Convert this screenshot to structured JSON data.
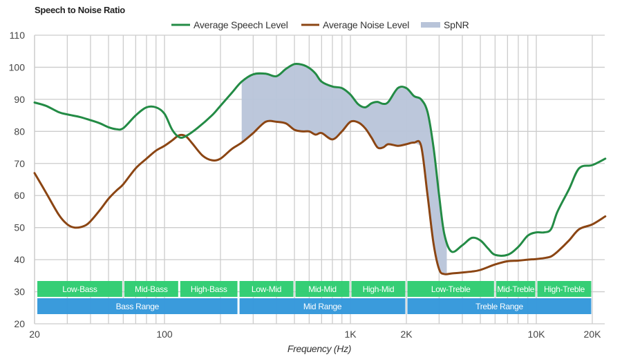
{
  "chart_data": {
    "type": "line",
    "title": "Speech to Noise Ratio",
    "xlabel": "Frequency (Hz)",
    "ylabel": "",
    "xscale": "log",
    "xlim": [
      20,
      23500
    ],
    "ylim": [
      20,
      110
    ],
    "grid": true,
    "legend_position": "top-center",
    "y_ticks": [
      20,
      30,
      40,
      50,
      60,
      70,
      80,
      90,
      100,
      110
    ],
    "y_tick_labels": [
      "20",
      "30",
      "40",
      "50",
      "60",
      "70",
      "80",
      "90",
      "100",
      "110"
    ],
    "x_ticks": [
      20,
      100,
      1000,
      2000,
      10000,
      20000
    ],
    "x_tick_labels": [
      "20",
      "100",
      "1K",
      "2K",
      "10K",
      "20K"
    ],
    "x_minor_grid": [
      30,
      40,
      50,
      60,
      70,
      80,
      90,
      200,
      300,
      400,
      500,
      600,
      700,
      800,
      900,
      3000,
      4000,
      5000,
      6000,
      7000,
      8000,
      9000
    ],
    "series": [
      {
        "name": "Average Speech Level",
        "color": "#238b45",
        "x": [
          20,
          23,
          27,
          30,
          35,
          40,
          45,
          50,
          55,
          60,
          70,
          80,
          90,
          100,
          110,
          120,
          130,
          150,
          180,
          200,
          230,
          260,
          300,
          350,
          400,
          450,
          500,
          550,
          600,
          650,
          700,
          800,
          900,
          1000,
          1100,
          1200,
          1300,
          1400,
          1500,
          1600,
          1800,
          2000,
          2200,
          2400,
          2600,
          2800,
          3000,
          3200,
          3500,
          4000,
          4500,
          5000,
          5500,
          6000,
          7000,
          8000,
          9000,
          10000,
          11000,
          12000,
          13000,
          15000,
          17000,
          20000,
          23500
        ],
        "values": [
          89,
          88,
          86,
          85.3,
          84.5,
          83.5,
          82.5,
          81.3,
          80.7,
          81,
          85,
          87.5,
          87.5,
          85.5,
          80.5,
          78.2,
          78.5,
          81,
          85,
          88,
          92,
          95.5,
          97.8,
          98,
          97.2,
          99.5,
          101,
          100.8,
          99.8,
          98,
          95.5,
          94,
          93.5,
          91.5,
          88.5,
          87.5,
          88.8,
          89.2,
          88.6,
          89.2,
          93.5,
          93.5,
          91,
          90,
          86,
          75,
          60,
          48,
          42.5,
          44.5,
          46.8,
          46,
          43.5,
          41.5,
          41.5,
          44,
          47.5,
          48.5,
          48.5,
          49.5,
          55,
          62,
          68.5,
          69.5,
          71.5
        ]
      },
      {
        "name": "Average Noise Level",
        "color": "#8b4513",
        "x": [
          20,
          23,
          27,
          30,
          33,
          37,
          40,
          45,
          50,
          55,
          60,
          70,
          80,
          90,
          100,
          110,
          120,
          130,
          140,
          160,
          180,
          200,
          230,
          260,
          300,
          350,
          400,
          450,
          500,
          550,
          600,
          650,
          700,
          800,
          900,
          1000,
          1100,
          1200,
          1300,
          1400,
          1500,
          1600,
          1800,
          2000,
          2200,
          2400,
          2600,
          2800,
          3000,
          3200,
          3500,
          4000,
          4500,
          5000,
          6000,
          7000,
          8000,
          9000,
          10000,
          11000,
          12000,
          13000,
          15000,
          17000,
          20000,
          23500
        ],
        "values": [
          67,
          61,
          54,
          51,
          50,
          50.5,
          52,
          55.5,
          59,
          61.5,
          63.5,
          68.5,
          71.5,
          74,
          75.5,
          77.2,
          78.8,
          78.5,
          76.5,
          72.5,
          71,
          71.5,
          74.5,
          76.5,
          79.5,
          83,
          83,
          82.5,
          80.5,
          80,
          80,
          79,
          79.5,
          77.5,
          80,
          83,
          82.8,
          81,
          78,
          75,
          75,
          76,
          75.5,
          76,
          76.5,
          75.5,
          60,
          45,
          37,
          35.5,
          35.7,
          36,
          36.3,
          36.8,
          38.5,
          39.5,
          39.7,
          40,
          40.2,
          40.5,
          41,
          42.5,
          46,
          49.5,
          51,
          53.5
        ]
      }
    ],
    "fill": {
      "name": "SpNR",
      "color": "#b8c4d9",
      "between": [
        "Average Speech Level",
        "Average Noise Level"
      ],
      "x_range": [
        260,
        3300
      ]
    },
    "bands": [
      {
        "label": "Low-Bass",
        "start": 20,
        "end": 60,
        "color": "#2ecc71",
        "row": "sub"
      },
      {
        "label": "Mid-Bass",
        "start": 60,
        "end": 120,
        "color": "#2ecc71",
        "row": "sub"
      },
      {
        "label": "High-Bass",
        "start": 120,
        "end": 250,
        "color": "#2ecc71",
        "row": "sub"
      },
      {
        "label": "Low-Mid",
        "start": 250,
        "end": 500,
        "color": "#2ecc71",
        "row": "sub"
      },
      {
        "label": "Mid-Mid",
        "start": 500,
        "end": 1000,
        "color": "#2ecc71",
        "row": "sub"
      },
      {
        "label": "High-Mid",
        "start": 1000,
        "end": 2000,
        "color": "#2ecc71",
        "row": "sub"
      },
      {
        "label": "Low-Treble",
        "start": 2000,
        "end": 6000,
        "color": "#2ecc71",
        "row": "sub"
      },
      {
        "label": "Mid-Treble",
        "start": 6000,
        "end": 10000,
        "color": "#2ecc71",
        "row": "sub"
      },
      {
        "label": "High-Treble",
        "start": 10000,
        "end": 20000,
        "color": "#2ecc71",
        "row": "sub"
      },
      {
        "label": "Bass Range",
        "start": 20,
        "end": 250,
        "color": "#3498db",
        "row": "main"
      },
      {
        "label": "Mid Range",
        "start": 250,
        "end": 2000,
        "color": "#3498db",
        "row": "main"
      },
      {
        "label": "Treble Range",
        "start": 2000,
        "end": 20000,
        "color": "#3498db",
        "row": "main"
      }
    ],
    "legend": [
      {
        "label": "Average Speech Level",
        "type": "line",
        "color": "#238b45"
      },
      {
        "label": "Average Noise Level",
        "type": "line",
        "color": "#8b4513"
      },
      {
        "label": "SpNR",
        "type": "area",
        "color": "#b8c4d9"
      }
    ]
  }
}
